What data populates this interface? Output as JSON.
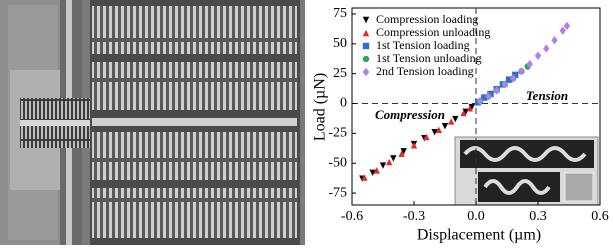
{
  "chart_data": {
    "type": "scatter",
    "x_label": "Displacement (µm)",
    "y_label": "Load (µN)",
    "annotations": [
      "Tension",
      "Compression"
    ],
    "xlim": [
      -0.6,
      0.6
    ],
    "xticks": [
      -0.6,
      -0.3,
      {
        "value": 0,
        "label": "0.0"
      },
      0.3,
      0.6
    ],
    "ylim": [
      -85,
      80
    ],
    "yticks": [
      -75,
      -50,
      -25,
      0,
      25,
      50,
      75
    ],
    "legend": "upper left",
    "series": [
      {
        "name": "Compression loading",
        "color": "#000000",
        "marker": "triangle-down",
        "x": [
          -0.55,
          -0.5,
          -0.45,
          -0.4,
          -0.35,
          -0.3,
          -0.25,
          -0.2,
          -0.15,
          -0.1,
          -0.05,
          -0.02
        ],
        "values": [
          -63,
          -58,
          -52,
          -46,
          -40,
          -34,
          -29,
          -24,
          -19,
          -13,
          -7,
          -3
        ]
      },
      {
        "name": "Compression unloading",
        "color": "#e8262a",
        "marker": "triangle-up",
        "x": [
          -0.54,
          -0.48,
          -0.42,
          -0.36,
          -0.3,
          -0.24,
          -0.18,
          -0.12,
          -0.06,
          -0.03
        ],
        "values": [
          -62,
          -56,
          -49,
          -42,
          -35,
          -28,
          -22,
          -15,
          -8,
          -4
        ]
      },
      {
        "name": "1st Tension loading",
        "color": "#2b6fd6",
        "marker": "square",
        "x": [
          0.01,
          0.04,
          0.07,
          0.1,
          0.13,
          0.16,
          0.19
        ],
        "values": [
          1,
          5,
          8,
          12,
          16,
          20,
          24
        ]
      },
      {
        "name": "1st Tension unloading",
        "color": "#2aa56a",
        "marker": "circle",
        "x": [
          0.02,
          0.06,
          0.1,
          0.14,
          0.18,
          0.22,
          0.25
        ],
        "values": [
          2,
          6,
          11,
          16,
          21,
          27,
          31
        ]
      },
      {
        "name": "2nd Tension loading",
        "color": "#b57ee8",
        "marker": "diamond",
        "x": [
          0.02,
          0.06,
          0.1,
          0.14,
          0.18,
          0.22,
          0.26,
          0.3,
          0.34,
          0.38,
          0.42,
          0.44
        ],
        "values": [
          2,
          6,
          11,
          16,
          21,
          27,
          33,
          40,
          46,
          53,
          61,
          65
        ]
      }
    ]
  }
}
